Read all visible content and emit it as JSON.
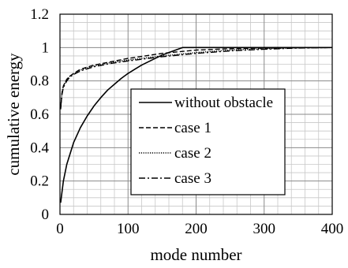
{
  "chart_data": {
    "type": "line",
    "title": "",
    "xlabel": "mode number",
    "ylabel": "cumulative energy",
    "xlim": [
      0,
      400
    ],
    "ylim": [
      0,
      1.2
    ],
    "x_ticks": [
      "0",
      "100",
      "200",
      "300",
      "400"
    ],
    "y_ticks": [
      "0",
      "0.2",
      "0.4",
      "0.6",
      "0.8",
      "1",
      "1.2"
    ],
    "grid": true,
    "legend_position": "center-right",
    "series": [
      {
        "name": "without obstacle",
        "style": "solid",
        "x": [
          1,
          5,
          10,
          20,
          30,
          40,
          50,
          60,
          70,
          80,
          90,
          100,
          110,
          120,
          130,
          140,
          150,
          160,
          170,
          180,
          200,
          250,
          300,
          350,
          400
        ],
        "y": [
          0.07,
          0.2,
          0.3,
          0.43,
          0.52,
          0.59,
          0.65,
          0.7,
          0.745,
          0.78,
          0.815,
          0.845,
          0.87,
          0.895,
          0.915,
          0.935,
          0.955,
          0.97,
          0.985,
          1.0,
          1.0,
          1.0,
          1.0,
          1.0,
          1.0
        ]
      },
      {
        "name": "case 1",
        "style": "dashed",
        "x": [
          1,
          3,
          5,
          10,
          15,
          20,
          30,
          50,
          75,
          100,
          150,
          200,
          250,
          300,
          350,
          400
        ],
        "y": [
          0.63,
          0.73,
          0.77,
          0.81,
          0.83,
          0.845,
          0.87,
          0.895,
          0.915,
          0.935,
          0.965,
          0.985,
          0.993,
          0.997,
          0.999,
          1.0
        ]
      },
      {
        "name": "case 2",
        "style": "dotted",
        "x": [
          1,
          3,
          5,
          10,
          15,
          20,
          30,
          50,
          75,
          100,
          150,
          200,
          250,
          300,
          350,
          400
        ],
        "y": [
          0.64,
          0.73,
          0.77,
          0.81,
          0.83,
          0.842,
          0.865,
          0.89,
          0.91,
          0.925,
          0.95,
          0.97,
          0.985,
          0.993,
          0.998,
          1.0
        ]
      },
      {
        "name": "case 3",
        "style": "dashdot",
        "x": [
          1,
          3,
          5,
          10,
          15,
          20,
          30,
          50,
          75,
          100,
          150,
          200,
          250,
          300,
          350,
          400
        ],
        "y": [
          0.64,
          0.72,
          0.76,
          0.8,
          0.825,
          0.838,
          0.86,
          0.885,
          0.905,
          0.92,
          0.945,
          0.965,
          0.98,
          0.99,
          0.997,
          1.0
        ]
      }
    ]
  }
}
